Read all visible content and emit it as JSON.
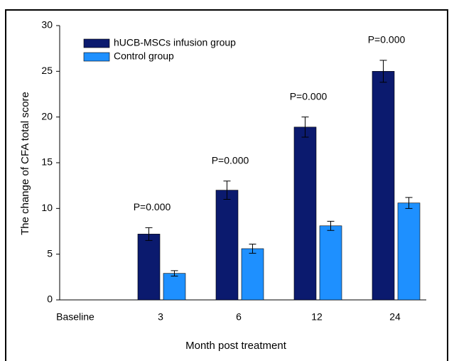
{
  "chart_data": {
    "type": "bar",
    "x_label": "Month post treatment",
    "y_label": "The change of CFA total score",
    "categories": [
      "Baseline",
      "3",
      "6",
      "12",
      "24"
    ],
    "series": [
      {
        "name": "hUCB-MSCs infusion group",
        "color": "#0b1a6e",
        "values": [
          null,
          7.2,
          12.0,
          18.9,
          25.0
        ],
        "errors": [
          null,
          0.7,
          1.0,
          1.1,
          1.2
        ]
      },
      {
        "name": "Control group",
        "color": "#1e90ff",
        "values": [
          null,
          2.9,
          5.6,
          8.1,
          10.6
        ],
        "errors": [
          null,
          0.3,
          0.5,
          0.5,
          0.6
        ]
      }
    ],
    "annotations": [
      null,
      "P=0.000",
      "P=0.000",
      "P=0.000",
      "P=0.000"
    ],
    "ylim": [
      0,
      30
    ],
    "yticks": [
      0,
      5,
      10,
      15,
      20,
      25,
      30
    ],
    "legend": "upper-left"
  }
}
